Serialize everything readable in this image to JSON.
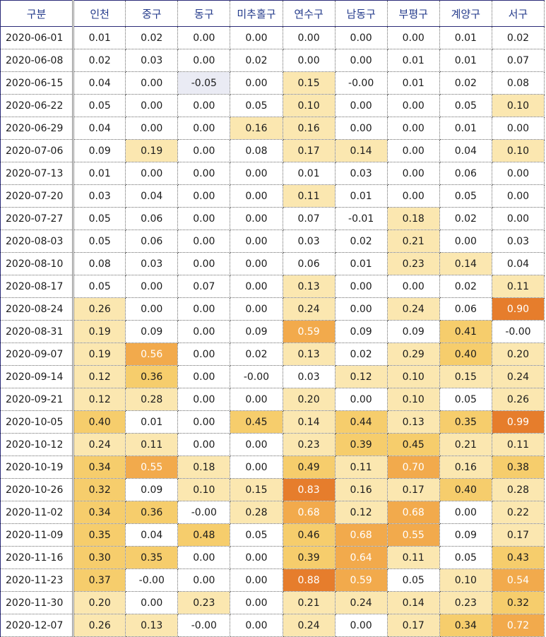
{
  "header": {
    "columns": [
      "구분",
      "인천",
      "중구",
      "동구",
      "미추홀구",
      "연수구",
      "남동구",
      "부평구",
      "계양구",
      "서구"
    ]
  },
  "rows": [
    {
      "date": "2020-06-01",
      "values": [
        "0.01",
        "0.02",
        "0.00",
        "0.00",
        "0.00",
        "0.00",
        "0.00",
        "0.01",
        "0.02"
      ]
    },
    {
      "date": "2020-06-08",
      "values": [
        "0.02",
        "0.03",
        "0.00",
        "0.02",
        "0.00",
        "0.00",
        "0.01",
        "0.01",
        "0.07"
      ]
    },
    {
      "date": "2020-06-15",
      "values": [
        "0.04",
        "0.00",
        "-0.05",
        "0.00",
        "0.15",
        "-0.00",
        "0.01",
        "0.02",
        "0.08"
      ]
    },
    {
      "date": "2020-06-22",
      "values": [
        "0.05",
        "0.00",
        "0.00",
        "0.05",
        "0.10",
        "0.00",
        "0.00",
        "0.05",
        "0.10"
      ]
    },
    {
      "date": "2020-06-29",
      "values": [
        "0.04",
        "0.00",
        "0.00",
        "0.16",
        "0.16",
        "0.00",
        "0.00",
        "0.01",
        "0.00"
      ]
    },
    {
      "date": "2020-07-06",
      "values": [
        "0.09",
        "0.19",
        "0.00",
        "0.08",
        "0.17",
        "0.14",
        "0.00",
        "0.04",
        "0.10"
      ]
    },
    {
      "date": "2020-07-13",
      "values": [
        "0.01",
        "0.00",
        "0.00",
        "0.00",
        "0.01",
        "0.03",
        "0.00",
        "0.06",
        "0.00"
      ]
    },
    {
      "date": "2020-07-20",
      "values": [
        "0.03",
        "0.04",
        "0.00",
        "0.00",
        "0.11",
        "0.01",
        "0.00",
        "0.05",
        "0.00"
      ]
    },
    {
      "date": "2020-07-27",
      "values": [
        "0.05",
        "0.06",
        "0.00",
        "0.00",
        "0.07",
        "-0.01",
        "0.18",
        "0.02",
        "0.00"
      ]
    },
    {
      "date": "2020-08-03",
      "values": [
        "0.05",
        "0.06",
        "0.00",
        "0.00",
        "0.03",
        "0.02",
        "0.21",
        "0.00",
        "0.03"
      ]
    },
    {
      "date": "2020-08-10",
      "values": [
        "0.08",
        "0.03",
        "0.00",
        "0.00",
        "0.06",
        "0.01",
        "0.23",
        "0.14",
        "0.04"
      ]
    },
    {
      "date": "2020-08-17",
      "values": [
        "0.05",
        "0.00",
        "0.07",
        "0.00",
        "0.13",
        "0.00",
        "0.00",
        "0.02",
        "0.11"
      ]
    },
    {
      "date": "2020-08-24",
      "values": [
        "0.26",
        "0.00",
        "0.00",
        "0.00",
        "0.24",
        "0.00",
        "0.24",
        "0.06",
        "0.90"
      ]
    },
    {
      "date": "2020-08-31",
      "values": [
        "0.19",
        "0.09",
        "0.00",
        "0.09",
        "0.59",
        "0.09",
        "0.09",
        "0.41",
        "-0.00"
      ]
    },
    {
      "date": "2020-09-07",
      "values": [
        "0.19",
        "0.56",
        "0.00",
        "0.02",
        "0.13",
        "0.02",
        "0.29",
        "0.40",
        "0.20"
      ]
    },
    {
      "date": "2020-09-14",
      "values": [
        "0.12",
        "0.36",
        "0.00",
        "-0.00",
        "0.03",
        "0.12",
        "0.10",
        "0.15",
        "0.24"
      ]
    },
    {
      "date": "2020-09-21",
      "values": [
        "0.12",
        "0.28",
        "0.00",
        "0.00",
        "0.20",
        "0.00",
        "0.10",
        "0.05",
        "0.26"
      ]
    },
    {
      "date": "2020-10-05",
      "values": [
        "0.40",
        "0.01",
        "0.00",
        "0.45",
        "0.14",
        "0.44",
        "0.13",
        "0.35",
        "0.99"
      ]
    },
    {
      "date": "2020-10-12",
      "values": [
        "0.24",
        "0.11",
        "0.00",
        "0.00",
        "0.23",
        "0.39",
        "0.45",
        "0.21",
        "0.11"
      ]
    },
    {
      "date": "2020-10-19",
      "values": [
        "0.34",
        "0.55",
        "0.18",
        "0.00",
        "0.49",
        "0.11",
        "0.70",
        "0.16",
        "0.38"
      ]
    },
    {
      "date": "2020-10-26",
      "values": [
        "0.32",
        "0.09",
        "0.10",
        "0.15",
        "0.83",
        "0.16",
        "0.17",
        "0.40",
        "0.28"
      ]
    },
    {
      "date": "2020-11-02",
      "values": [
        "0.34",
        "0.36",
        "-0.00",
        "0.28",
        "0.68",
        "0.12",
        "0.68",
        "0.00",
        "0.22"
      ]
    },
    {
      "date": "2020-11-09",
      "values": [
        "0.35",
        "0.04",
        "0.48",
        "0.05",
        "0.46",
        "0.68",
        "0.55",
        "0.09",
        "0.17"
      ]
    },
    {
      "date": "2020-11-16",
      "values": [
        "0.30",
        "0.35",
        "0.00",
        "0.00",
        "0.39",
        "0.64",
        "0.11",
        "0.05",
        "0.43"
      ]
    },
    {
      "date": "2020-11-23",
      "values": [
        "0.37",
        "-0.00",
        "0.00",
        "0.00",
        "0.88",
        "0.59",
        "0.05",
        "0.10",
        "0.54"
      ]
    },
    {
      "date": "2020-11-30",
      "values": [
        "0.20",
        "0.00",
        "0.23",
        "0.00",
        "0.21",
        "0.24",
        "0.14",
        "0.23",
        "0.32"
      ]
    },
    {
      "date": "2020-12-07",
      "values": [
        "0.26",
        "0.13",
        "-0.00",
        "0.00",
        "0.24",
        "0.00",
        "0.17",
        "0.34",
        "0.72"
      ]
    }
  ],
  "colors": {
    "negative": "#eaebf4",
    "light": "#fbe7b0",
    "medium": "#f6cd6c",
    "strong": "#f2aa4c",
    "hot": "#e67d2c"
  }
}
